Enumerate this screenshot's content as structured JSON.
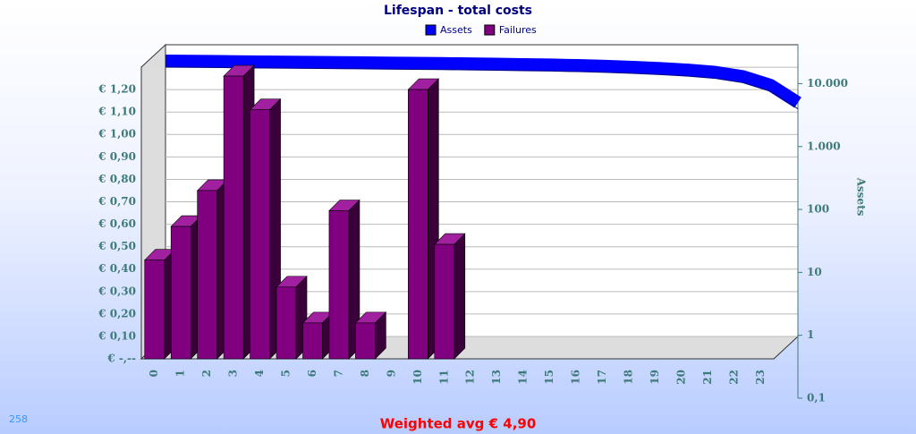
{
  "chart_data": {
    "type": "bar",
    "title": "Lifespan - total costs",
    "categories": [
      "0",
      "1",
      "2",
      "3",
      "4",
      "5",
      "6",
      "7",
      "8",
      "9",
      "10",
      "11",
      "12",
      "13",
      "14",
      "15",
      "16",
      "17",
      "18",
      "19",
      "20",
      "21",
      "22",
      "23"
    ],
    "series": [
      {
        "name": "Assets",
        "color": "#0000ff",
        "type": "line",
        "axis": "y2",
        "values": [
          23000,
          22800,
          22600,
          22400,
          22200,
          22000,
          21800,
          21600,
          21400,
          21200,
          21000,
          20800,
          20500,
          20200,
          19900,
          19500,
          19000,
          18300,
          17500,
          16500,
          15200,
          13000,
          9500,
          5000
        ]
      },
      {
        "name": "Failures",
        "color": "#800080",
        "values": [
          0.44,
          0.59,
          0.75,
          1.26,
          1.11,
          0.32,
          0.16,
          0.66,
          0.16,
          0,
          1.2,
          0.51,
          0,
          0,
          0,
          0,
          0,
          0,
          0,
          0,
          0,
          0,
          0,
          0
        ]
      }
    ],
    "ylim": [
      0,
      1.3
    ],
    "yticks": [
      {
        "value": 0,
        "label": "€ -,--"
      },
      {
        "value": 0.1,
        "label": "€ 0,10"
      },
      {
        "value": 0.2,
        "label": "€ 0,20"
      },
      {
        "value": 0.3,
        "label": "€ 0,30"
      },
      {
        "value": 0.4,
        "label": "€ 0,40"
      },
      {
        "value": 0.5,
        "label": "€ 0,50"
      },
      {
        "value": 0.6,
        "label": "€ 0,60"
      },
      {
        "value": 0.7,
        "label": "€ 0,70"
      },
      {
        "value": 0.8,
        "label": "€ 0,80"
      },
      {
        "value": 0.9,
        "label": "€ 0,90"
      },
      {
        "value": 1.0,
        "label": "€ 1,00"
      },
      {
        "value": 1.1,
        "label": "€ 1,10"
      },
      {
        "value": 1.2,
        "label": "€ 1,20"
      }
    ],
    "y2label": "Assets",
    "y2log": true,
    "y2lim": [
      0.1,
      28000
    ],
    "y2ticks": [
      {
        "value": 0.1,
        "label": "0,1"
      },
      1,
      10,
      100,
      {
        "value": 1000,
        "label": "1.000"
      },
      {
        "value": 10000,
        "label": "10.000"
      }
    ],
    "grid": true,
    "legend": "top",
    "footer": "Weighted avg € 4,90",
    "corner_label": "258"
  }
}
